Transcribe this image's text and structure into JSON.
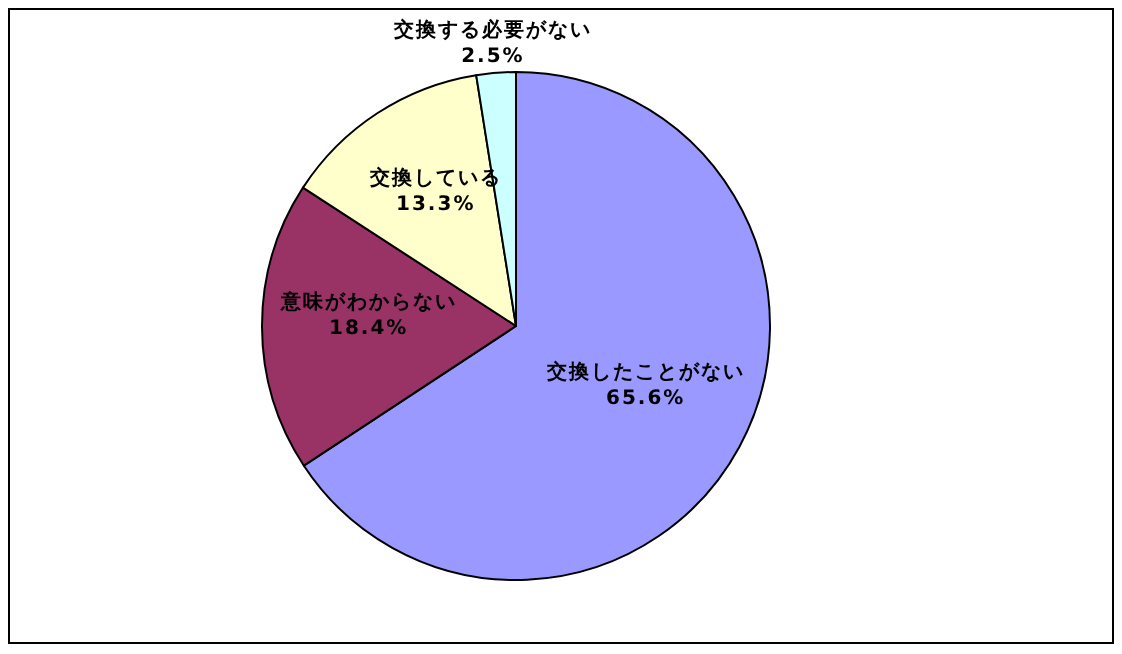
{
  "chart_data": {
    "type": "pie",
    "categories": [
      "交換したことがない",
      "意味がわからない",
      "交換している",
      "交換する必要がない"
    ],
    "values": [
      65.6,
      18.4,
      13.3,
      2.5
    ],
    "value_labels": [
      "65.6%",
      "18.4%",
      "13.3%",
      "2.5%"
    ],
    "colors": [
      "#9999ff",
      "#993366",
      "#ffffcc",
      "#ccffff"
    ]
  }
}
